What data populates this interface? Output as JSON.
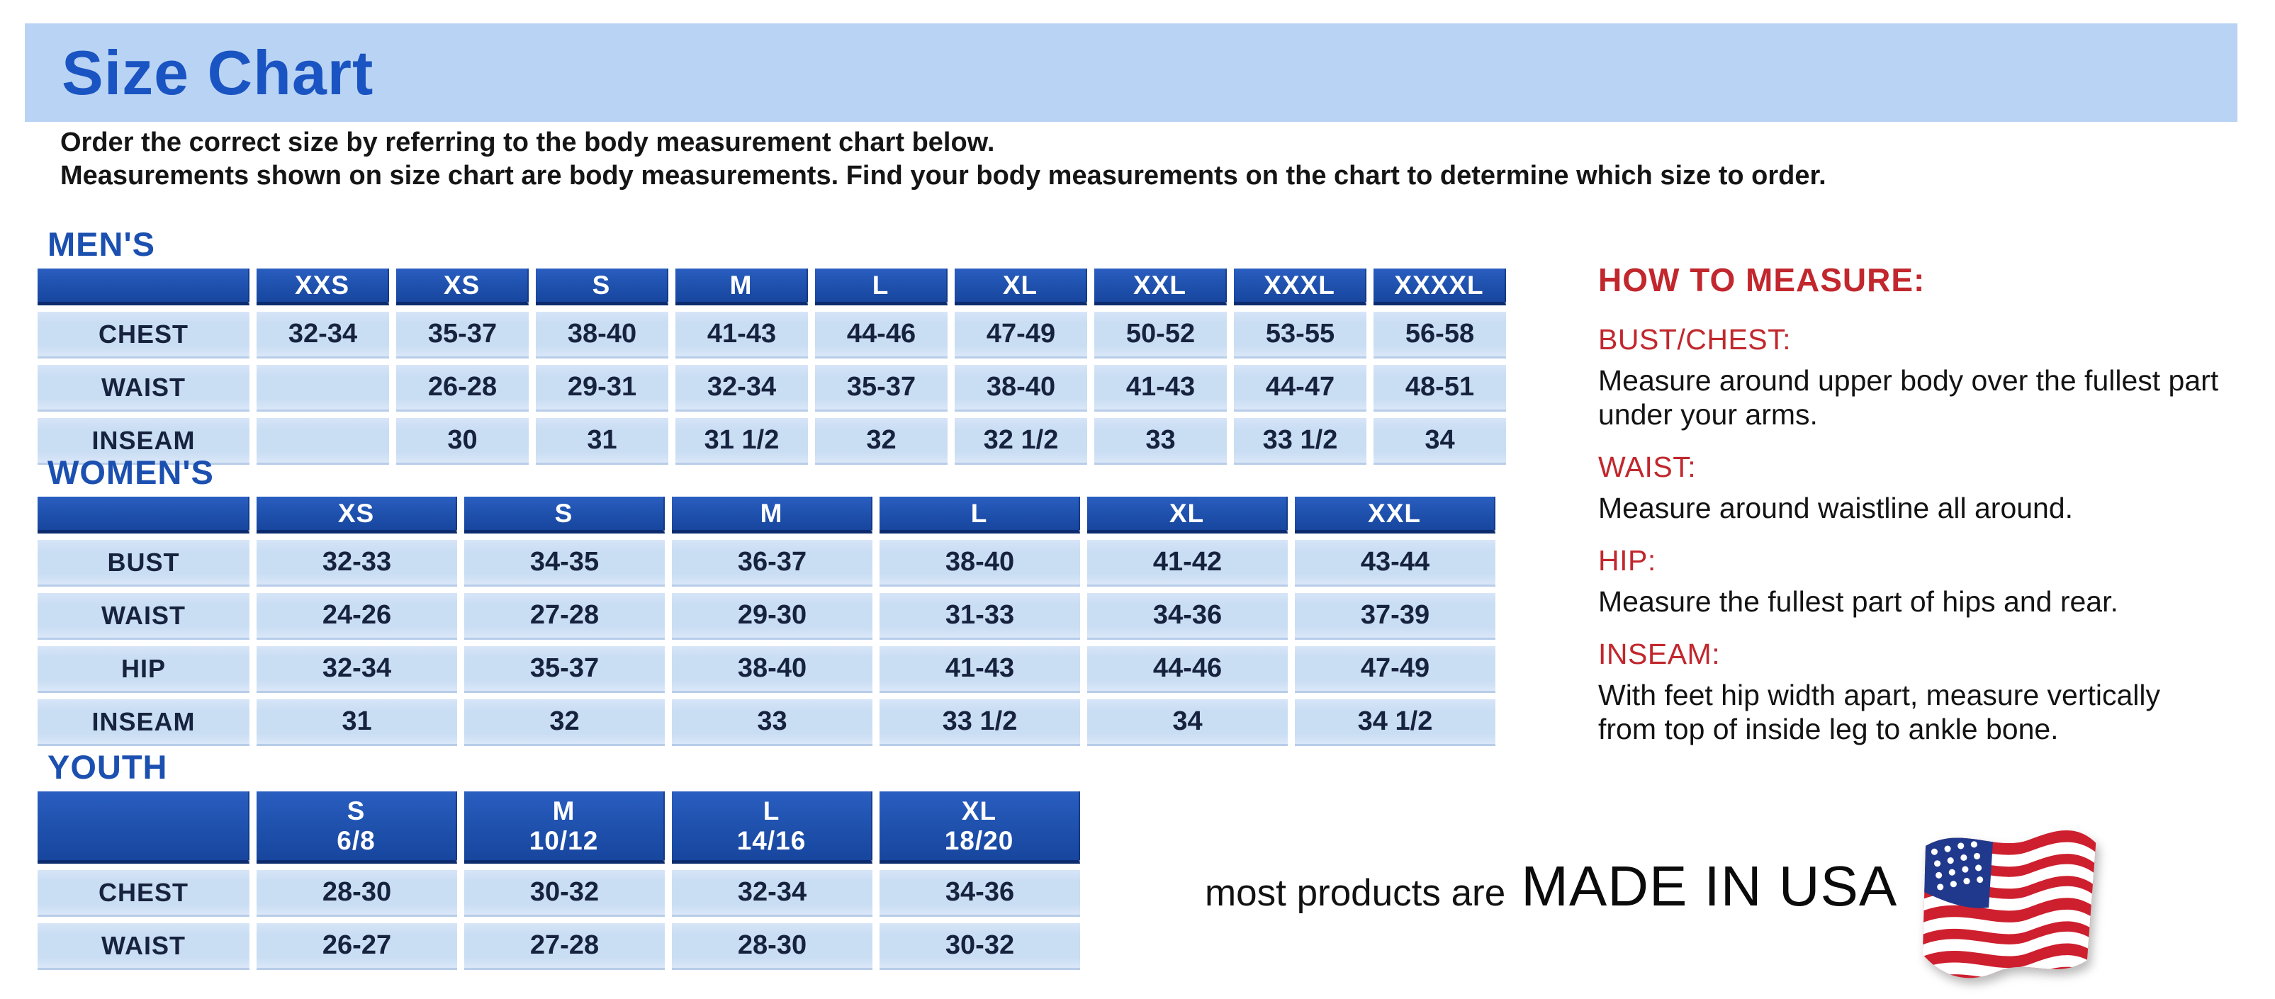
{
  "page": {
    "title": "Size Chart",
    "intro_line1": "Order the correct size by referring to the body measurement chart below.",
    "intro_line2": "Measurements shown on size chart are body measurements.  Find your body measurements on the chart to determine which size to order."
  },
  "colors": {
    "banner_blue": "#b9d3f4",
    "title_blue": "#1a54c2",
    "section_blue": "#1c50b0",
    "header_blue": "#1e50ac",
    "cell_blue": "#c9ddf3",
    "navy_text": "#17233e",
    "red": "#c1272d",
    "flag_red": "#ce1f2e",
    "flag_blue": "#20398c"
  },
  "tables": [
    {
      "section_label": "MEN'S",
      "columns": [
        {
          "size": "XXS"
        },
        {
          "size": "XS"
        },
        {
          "size": "S"
        },
        {
          "size": "M"
        },
        {
          "size": "L"
        },
        {
          "size": "XL"
        },
        {
          "size": "XXL"
        },
        {
          "size": "XXXL"
        },
        {
          "size": "XXXXL"
        }
      ],
      "rows": [
        {
          "label": "CHEST",
          "values": [
            "32-34",
            "35-37",
            "38-40",
            "41-43",
            "44-46",
            "47-49",
            "50-52",
            "53-55",
            "56-58"
          ]
        },
        {
          "label": "WAIST",
          "values": [
            "",
            "26-28",
            "29-31",
            "32-34",
            "35-37",
            "38-40",
            "41-43",
            "44-47",
            "48-51"
          ]
        },
        {
          "label": "INSEAM",
          "values": [
            "",
            "30",
            "31",
            "31 1/2",
            "32",
            "32 1/2",
            "33",
            "33 1/2",
            "34"
          ]
        }
      ]
    },
    {
      "section_label": "WOMEN'S",
      "columns": [
        {
          "size": "XS"
        },
        {
          "size": "S"
        },
        {
          "size": "M"
        },
        {
          "size": "L"
        },
        {
          "size": "XL"
        },
        {
          "size": "XXL"
        }
      ],
      "rows": [
        {
          "label": "BUST",
          "values": [
            "32-33",
            "34-35",
            "36-37",
            "38-40",
            "41-42",
            "43-44"
          ]
        },
        {
          "label": "WAIST",
          "values": [
            "24-26",
            "27-28",
            "29-30",
            "31-33",
            "34-36",
            "37-39"
          ]
        },
        {
          "label": "HIP",
          "values": [
            "32-34",
            "35-37",
            "38-40",
            "41-43",
            "44-46",
            "47-49"
          ]
        },
        {
          "label": "INSEAM",
          "values": [
            "31",
            "32",
            "33",
            "33 1/2",
            "34",
            "34 1/2"
          ]
        }
      ]
    },
    {
      "section_label": "YOUTH",
      "columns": [
        {
          "size": "S",
          "detail": "6/8"
        },
        {
          "size": "M",
          "detail": "10/12"
        },
        {
          "size": "L",
          "detail": "14/16"
        },
        {
          "size": "XL",
          "detail": "18/20"
        }
      ],
      "rows": [
        {
          "label": "CHEST",
          "values": [
            "28-30",
            "30-32",
            "32-34",
            "34-36"
          ]
        },
        {
          "label": "WAIST",
          "values": [
            "26-27",
            "27-28",
            "28-30",
            "30-32"
          ]
        }
      ]
    }
  ],
  "how_to_measure": {
    "title": "HOW TO MEASURE:",
    "items": [
      {
        "heading": "BUST/CHEST:",
        "text": "Measure around upper body over the fullest part under your arms."
      },
      {
        "heading": "WAIST:",
        "text": "Measure around waistline all around."
      },
      {
        "heading": "HIP:",
        "text": "Measure the fullest part of hips and rear."
      },
      {
        "heading": "INSEAM:",
        "text": "With feet hip width apart, measure vertically from top of inside leg to ankle bone."
      }
    ]
  },
  "footer": {
    "made_in_prefix": "most products are",
    "made_in": "MADE IN USA",
    "flag_icon": "us-flag-icon"
  }
}
